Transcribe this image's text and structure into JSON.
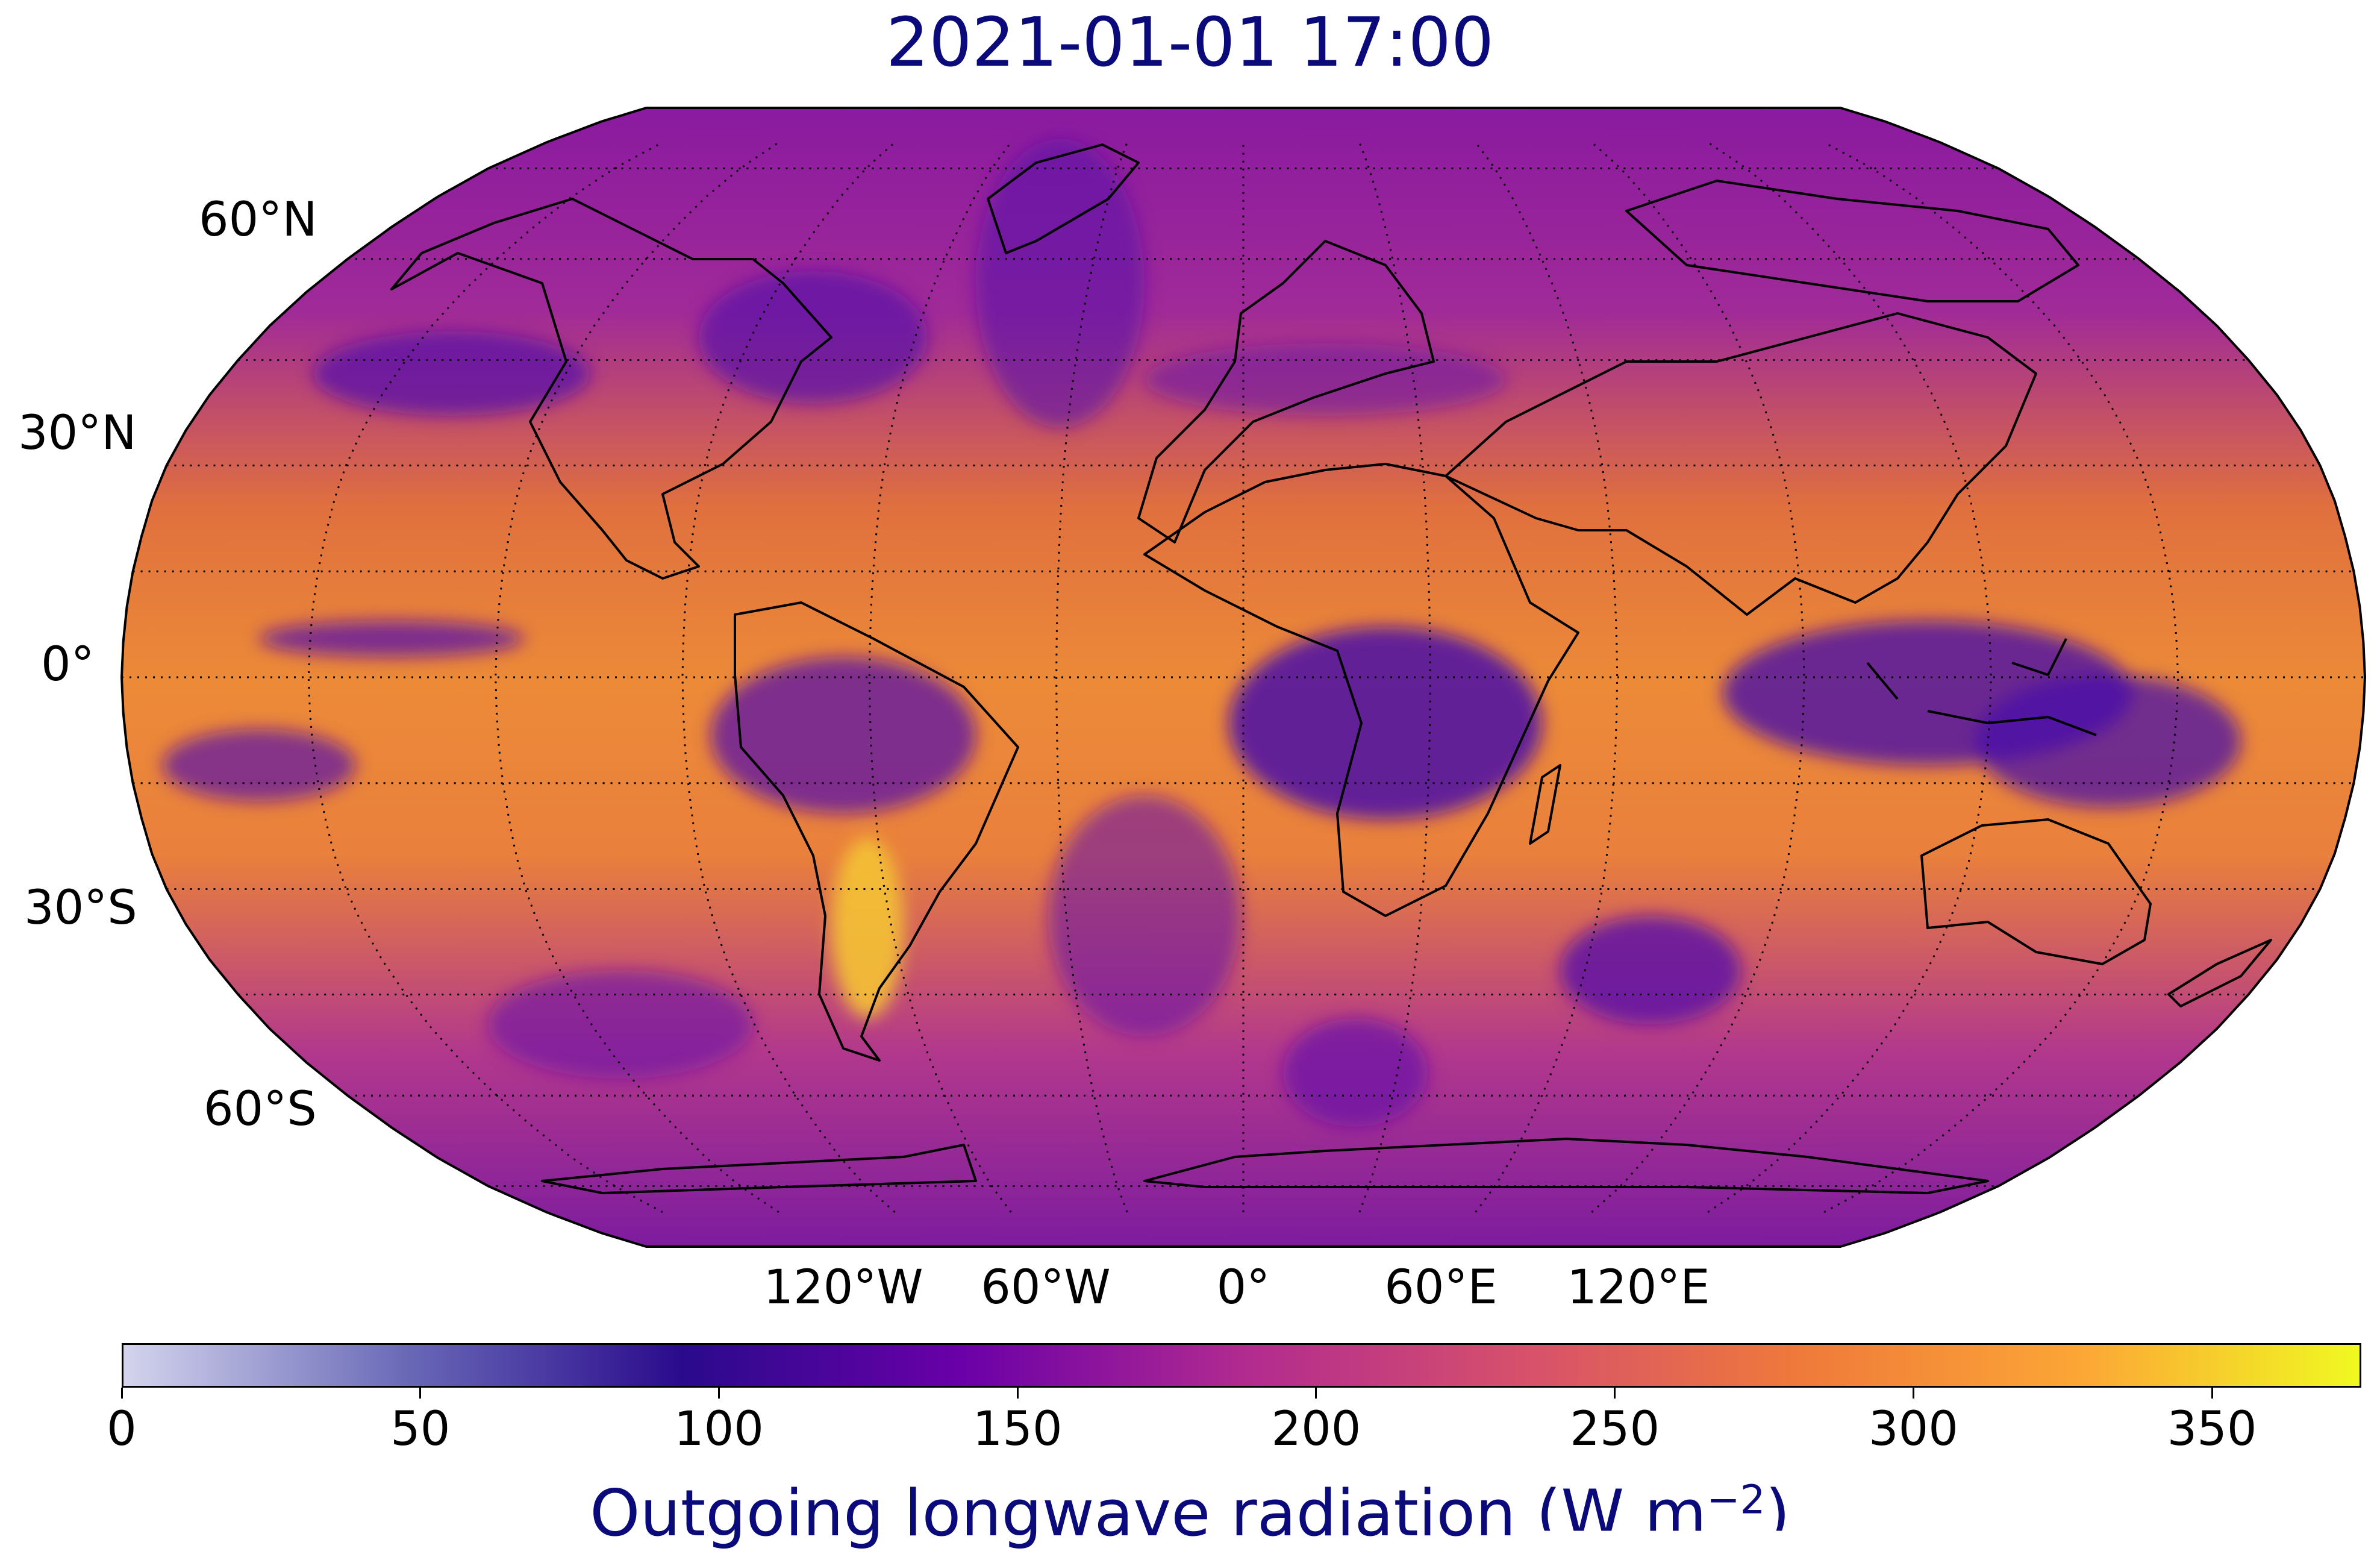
{
  "title": "2021-01-01 17:00",
  "map": {
    "projection": "Robinson",
    "lat_labels": [
      "60°N",
      "30°N",
      "0°",
      "30°S",
      "60°S"
    ],
    "lon_labels": [
      "120°W",
      "60°W",
      "0°",
      "60°E",
      "120°E"
    ],
    "gridlines": "dotted",
    "field": "Outgoing longwave radiation",
    "colormap": "plasma"
  },
  "colorbar": {
    "min": 0,
    "max": 375,
    "ticks": [
      "0",
      "50",
      "100",
      "150",
      "200",
      "250",
      "300",
      "350"
    ],
    "label_main": "Outgoing longwave radiation (W m",
    "label_exp": "−2",
    "label_close": ")",
    "colors": [
      "#d4d4ee",
      "#6a6ab8",
      "#2a0a8c",
      "#6a00a8",
      "#b12a90",
      "#d6506c",
      "#ef7a3a",
      "#fca636",
      "#f0f921"
    ]
  }
}
